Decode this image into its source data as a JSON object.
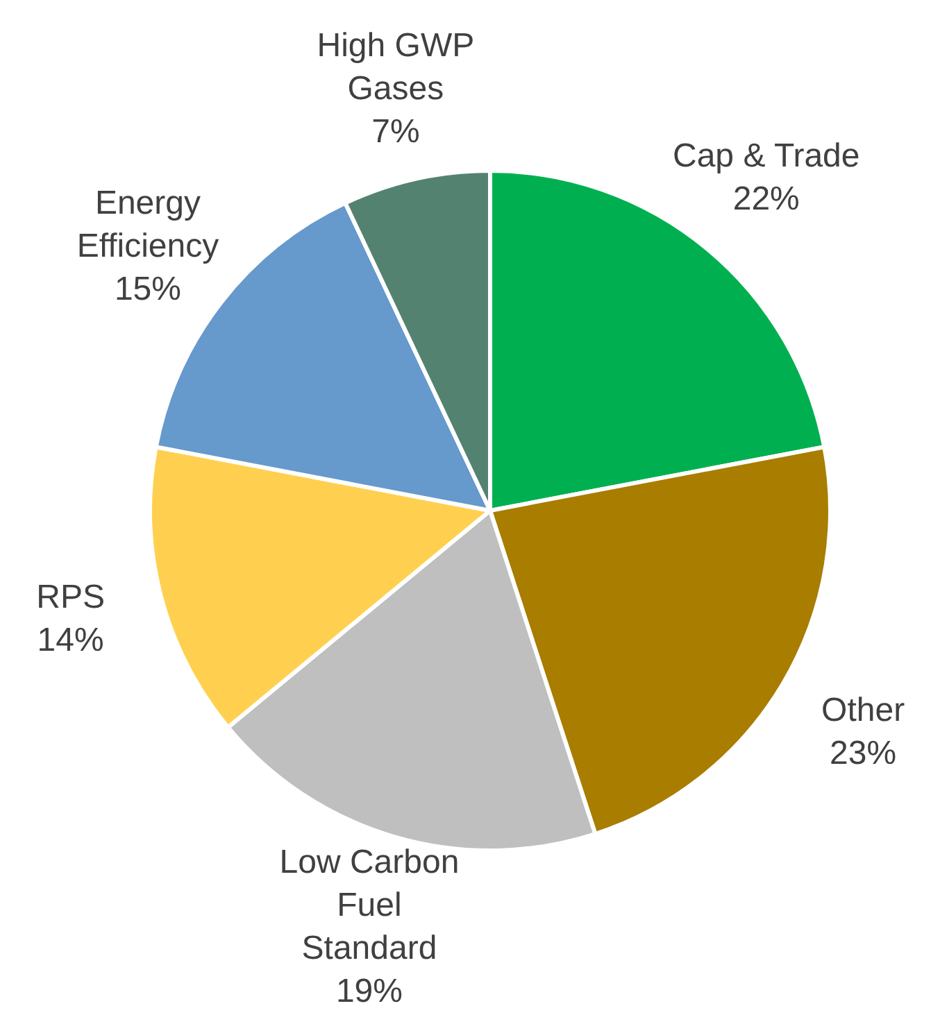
{
  "chart_data": {
    "type": "pie",
    "categories": [
      "Cap & Trade",
      "Other",
      "Low Carbon Fuel Standard",
      "RPS",
      "Energy Efficiency",
      "High GWP Gases"
    ],
    "values": [
      22,
      23,
      19,
      14,
      15,
      7
    ],
    "colors": [
      "#00b050",
      "#a87d00",
      "#bfbfbf",
      "#ffd050",
      "#6699cc",
      "#548270"
    ],
    "value_labels": [
      "22%",
      "23%",
      "19%",
      "14%",
      "15%",
      "7%"
    ]
  }
}
